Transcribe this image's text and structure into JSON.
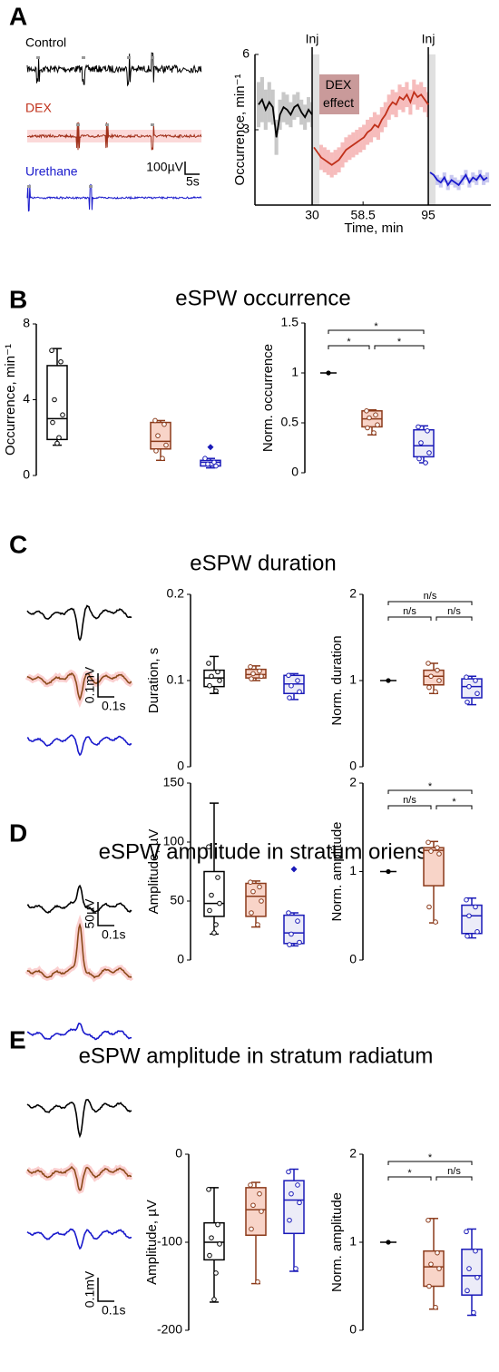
{
  "panel_labels": [
    "A",
    "B",
    "C",
    "D",
    "E"
  ],
  "panel_titles": [
    "eSPW occurrence",
    "eSPW duration",
    "eSPW amplitude in stratum oriens",
    "eSPW amplitude in stratum radiatum"
  ],
  "trace_labels": [
    "Control",
    "DEX",
    "Urethane"
  ],
  "scale_bars": [
    [
      "100µV",
      "5s"
    ],
    [
      "0.1mV",
      "0.1s"
    ],
    [
      "50µV",
      "0.1s"
    ],
    [
      "0.1mV",
      "0.1s"
    ]
  ],
  "chart_data": [
    {
      "type": "line",
      "xlabel": "Time, min",
      "ylabel": "Occurrence,  min⁻¹",
      "xlim": [
        -2,
        130
      ],
      "ylim": [
        0,
        6
      ],
      "yticks": [
        3,
        6
      ],
      "xticks": [
        30,
        58.5,
        95
      ],
      "annotations": [
        {
          "text": "Inj",
          "x": 30
        },
        {
          "text": "Inj",
          "x": 95
        }
      ],
      "effect_label": "DEX effect",
      "series": [
        {
          "color": "#000000",
          "band_color": "#c8c8c8",
          "x": [
            0,
            2,
            4,
            6,
            8,
            10,
            12,
            14,
            16,
            18,
            20,
            22,
            24,
            26,
            28,
            30
          ],
          "values": [
            4.0,
            4.2,
            3.8,
            4.1,
            3.9,
            2.7,
            3.6,
            3.9,
            3.8,
            3.6,
            3.9,
            4.0,
            3.7,
            3.5,
            3.8,
            3.6
          ],
          "error": [
            0.9,
            0.9,
            0.8,
            0.8,
            0.7,
            0.7,
            0.6,
            0.6,
            0.6,
            0.5,
            0.5,
            0.5,
            0.5,
            0.5,
            0.5,
            0.5
          ]
        },
        {
          "color": "#c0301a",
          "band_color": "#f6bcbc",
          "x": [
            31,
            33,
            35,
            37,
            39,
            41,
            43,
            45,
            47,
            49,
            51,
            53,
            55,
            57,
            59,
            61,
            63,
            65,
            67,
            69,
            71,
            73,
            75,
            77,
            79,
            81,
            83,
            85,
            87,
            89,
            91,
            93,
            95
          ],
          "values": [
            2.3,
            2.1,
            1.9,
            1.8,
            1.7,
            1.6,
            1.7,
            1.8,
            2.0,
            2.2,
            2.3,
            2.4,
            2.5,
            2.6,
            2.7,
            2.9,
            3.0,
            3.2,
            3.1,
            3.4,
            3.6,
            3.9,
            4.1,
            4.0,
            4.3,
            4.2,
            4.4,
            4.1,
            4.5,
            4.3,
            4.4,
            4.2,
            4.0
          ],
          "error": [
            0.5,
            0.5,
            0.5,
            0.5,
            0.5,
            0.5,
            0.5,
            0.5,
            0.5,
            0.5,
            0.5,
            0.5,
            0.5,
            0.5,
            0.5,
            0.5,
            0.5,
            0.5,
            0.5,
            0.5,
            0.5,
            0.5,
            0.5,
            0.5,
            0.5,
            0.5,
            0.5,
            0.5,
            0.5,
            0.5,
            0.5,
            0.5,
            0.5
          ]
        },
        {
          "color": "#1a1acc",
          "band_color": "#c8c8f0",
          "x": [
            96,
            98,
            100,
            102,
            104,
            106,
            108,
            110,
            112,
            114,
            116,
            118,
            120,
            122,
            124,
            126,
            128
          ],
          "values": [
            1.3,
            1.2,
            1.0,
            0.9,
            1.1,
            0.8,
            1.0,
            0.9,
            0.8,
            1.0,
            1.2,
            0.9,
            1.1,
            1.0,
            1.2,
            1.0,
            1.1
          ],
          "error": [
            0.2,
            0.2,
            0.2,
            0.2,
            0.2,
            0.2,
            0.2,
            0.2,
            0.2,
            0.2,
            0.2,
            0.2,
            0.2,
            0.2,
            0.2,
            0.2,
            0.2
          ]
        }
      ]
    },
    {
      "type": "box",
      "ylabel": "Occurrence,  min⁻¹",
      "ylim": [
        0,
        8
      ],
      "yticks": [
        0,
        4,
        8
      ],
      "categories": [
        null,
        null,
        null
      ],
      "colors": [
        "#000000",
        "#8b3a1a",
        "#1a1ab8"
      ],
      "fills": [
        "#ffffff",
        "#f8d4c8",
        "#ececf8"
      ],
      "boxes": [
        {
          "min": 1.6,
          "q1": 1.9,
          "median": 3.0,
          "q3": 5.8,
          "max": 6.7,
          "points": [
            6.6,
            6.0,
            4.0,
            3.2,
            2.8,
            2.0,
            1.7
          ]
        },
        {
          "min": 0.8,
          "q1": 1.4,
          "median": 1.8,
          "q3": 2.8,
          "max": 2.9,
          "points": [
            2.9,
            2.7,
            2.1,
            1.6,
            1.3,
            0.9
          ]
        },
        {
          "min": 0.4,
          "q1": 0.5,
          "median": 0.7,
          "q3": 0.8,
          "max": 0.9,
          "points": [
            0.9,
            0.7,
            0.6,
            0.5
          ],
          "outliers": [
            1.5
          ]
        }
      ]
    },
    {
      "type": "box",
      "ylabel": "Norm. occurrence",
      "ylim": [
        0,
        1.5
      ],
      "yticks": [
        0,
        0.5,
        1,
        1.5
      ],
      "categories": [
        null,
        null,
        null
      ],
      "colors": [
        "#000000",
        "#8b3a1a",
        "#1a1ab8"
      ],
      "fills": [
        "#ffffff",
        "#f8d4c8",
        "#ececf8"
      ],
      "boxes": [
        {
          "median": 1
        },
        {
          "min": 0.38,
          "q1": 0.46,
          "median": 0.54,
          "q3": 0.62,
          "max": 0.63,
          "points": [
            0.62,
            0.58,
            0.55,
            0.48,
            0.45,
            0.4
          ]
        },
        {
          "min": 0.1,
          "q1": 0.16,
          "median": 0.27,
          "q3": 0.43,
          "max": 0.47,
          "points": [
            0.46,
            0.42,
            0.3,
            0.2,
            0.14,
            0.1
          ]
        }
      ],
      "brackets": [
        {
          "pair": [
            0,
            1
          ],
          "label": "*"
        },
        {
          "pair": [
            1,
            2
          ],
          "label": "*"
        },
        {
          "pair": [
            0,
            2
          ],
          "label": "*"
        }
      ]
    },
    {
      "type": "box",
      "ylabel": "Duration, s",
      "ylim": [
        0,
        0.2
      ],
      "yticks": [
        0,
        0.1,
        0.2
      ],
      "categories": [
        null,
        null,
        null
      ],
      "colors": [
        "#000000",
        "#8b3a1a",
        "#1a1ab8"
      ],
      "fills": [
        "#ffffff",
        "#f8d4c8",
        "#ececf8"
      ],
      "boxes": [
        {
          "min": 0.085,
          "q1": 0.093,
          "median": 0.103,
          "q3": 0.112,
          "max": 0.128,
          "points": [
            0.12,
            0.11,
            0.105,
            0.1,
            0.094,
            0.088
          ]
        },
        {
          "min": 0.1,
          "q1": 0.103,
          "median": 0.107,
          "q3": 0.113,
          "max": 0.117,
          "points": [
            0.116,
            0.111,
            0.108,
            0.105,
            0.102
          ]
        },
        {
          "min": 0.078,
          "q1": 0.085,
          "median": 0.096,
          "q3": 0.106,
          "max": 0.108,
          "points": [
            0.106,
            0.1,
            0.094,
            0.087,
            0.08
          ]
        }
      ]
    },
    {
      "type": "box",
      "ylabel": "Norm. duration",
      "ylim": [
        0,
        2
      ],
      "yticks": [
        0,
        1,
        2
      ],
      "categories": [
        null,
        null,
        null
      ],
      "colors": [
        "#000000",
        "#8b3a1a",
        "#1a1ab8"
      ],
      "fills": [
        "#ffffff",
        "#f8d4c8",
        "#ececf8"
      ],
      "boxes": [
        {
          "median": 1
        },
        {
          "min": 0.85,
          "q1": 0.95,
          "median": 1.05,
          "q3": 1.12,
          "max": 1.2,
          "points": [
            1.2,
            1.12,
            1.05,
            1.0,
            0.92,
            0.87
          ]
        },
        {
          "min": 0.72,
          "q1": 0.8,
          "median": 0.93,
          "q3": 1.02,
          "max": 1.05,
          "points": [
            1.04,
            1.0,
            0.93,
            0.85,
            0.75
          ]
        }
      ],
      "brackets": [
        {
          "pair": [
            0,
            1
          ],
          "label": "n/s"
        },
        {
          "pair": [
            1,
            2
          ],
          "label": "n/s"
        },
        {
          "pair": [
            0,
            2
          ],
          "label": "n/s"
        }
      ]
    },
    {
      "type": "box",
      "ylabel": "Amplitude, µV",
      "ylim": [
        0,
        150
      ],
      "yticks": [
        0,
        50,
        100,
        150
      ],
      "categories": [
        null,
        null,
        null
      ],
      "colors": [
        "#000000",
        "#8b3a1a",
        "#1a1ab8"
      ],
      "fills": [
        "#ffffff",
        "#f8d4c8",
        "#ececf8"
      ],
      "boxes": [
        {
          "min": 22,
          "q1": 37,
          "median": 48,
          "q3": 75,
          "max": 133,
          "points": [
            96,
            70,
            55,
            48,
            42,
            30,
            23
          ]
        },
        {
          "min": 28,
          "q1": 37,
          "median": 54,
          "q3": 65,
          "max": 67,
          "points": [
            66,
            62,
            58,
            50,
            40,
            30
          ]
        },
        {
          "min": 12,
          "q1": 14,
          "median": 23,
          "q3": 38,
          "max": 40,
          "points": [
            40,
            33,
            22,
            15,
            13
          ],
          "outliers": [
            77
          ]
        }
      ]
    },
    {
      "type": "box",
      "ylabel": "Norm. amplitude",
      "ylim": [
        0,
        2
      ],
      "yticks": [
        0,
        1,
        2
      ],
      "categories": [
        null,
        null,
        null
      ],
      "colors": [
        "#000000",
        "#8b3a1a",
        "#1a1ab8"
      ],
      "fills": [
        "#ffffff",
        "#f8d4c8",
        "#ececf8"
      ],
      "boxes": [
        {
          "median": 1
        },
        {
          "min": 0.42,
          "q1": 0.84,
          "median": 1.24,
          "q3": 1.27,
          "max": 1.34,
          "points": [
            1.33,
            1.27,
            1.23,
            1.2,
            0.6,
            0.43
          ]
        },
        {
          "min": 0.25,
          "q1": 0.3,
          "median": 0.5,
          "q3": 0.62,
          "max": 0.7,
          "points": [
            0.68,
            0.6,
            0.5,
            0.32,
            0.27
          ]
        }
      ],
      "brackets": [
        {
          "pair": [
            0,
            1
          ],
          "label": "n/s"
        },
        {
          "pair": [
            1,
            2
          ],
          "label": "*"
        },
        {
          "pair": [
            0,
            2
          ],
          "label": "*"
        }
      ]
    },
    {
      "type": "box",
      "ylabel": "Amplitude, µV",
      "ylim": [
        -200,
        0
      ],
      "yticks": [
        -200,
        -100,
        0
      ],
      "categories": [
        null,
        null,
        null
      ],
      "colors": [
        "#000000",
        "#8b3a1a",
        "#1a1ab8"
      ],
      "fills": [
        "#ffffff",
        "#f8d4c8",
        "#ececf8"
      ],
      "boxes": [
        {
          "min": -168,
          "q1": -120,
          "median": -100,
          "q3": -78,
          "max": -38,
          "points": [
            -40,
            -80,
            -95,
            -102,
            -115,
            -135,
            -165
          ]
        },
        {
          "min": -147,
          "q1": -92,
          "median": -63,
          "q3": -38,
          "max": -32,
          "points": [
            -35,
            -45,
            -58,
            -65,
            -85,
            -145
          ]
        },
        {
          "min": -133,
          "q1": -90,
          "median": -52,
          "q3": -30,
          "max": -17,
          "points": [
            -20,
            -35,
            -45,
            -55,
            -75,
            -130
          ]
        }
      ]
    },
    {
      "type": "box",
      "ylabel": "Norm. amplitude",
      "ylim": [
        0,
        2
      ],
      "yticks": [
        0,
        1,
        2
      ],
      "categories": [
        null,
        null,
        null
      ],
      "colors": [
        "#000000",
        "#8b3a1a",
        "#1a1ab8"
      ],
      "fills": [
        "#ffffff",
        "#f8d4c8",
        "#ececf8"
      ],
      "boxes": [
        {
          "median": 1
        },
        {
          "min": 0.24,
          "q1": 0.5,
          "median": 0.72,
          "q3": 0.9,
          "max": 1.27,
          "points": [
            1.25,
            0.88,
            0.75,
            0.7,
            0.5,
            0.26
          ]
        },
        {
          "min": 0.17,
          "q1": 0.4,
          "median": 0.62,
          "q3": 0.92,
          "max": 1.15,
          "points": [
            1.12,
            0.9,
            0.7,
            0.6,
            0.45,
            0.2
          ]
        }
      ],
      "brackets": [
        {
          "pair": [
            0,
            1
          ],
          "label": "*"
        },
        {
          "pair": [
            1,
            2
          ],
          "label": "n/s"
        },
        {
          "pair": [
            0,
            2
          ],
          "label": "*"
        }
      ]
    }
  ]
}
